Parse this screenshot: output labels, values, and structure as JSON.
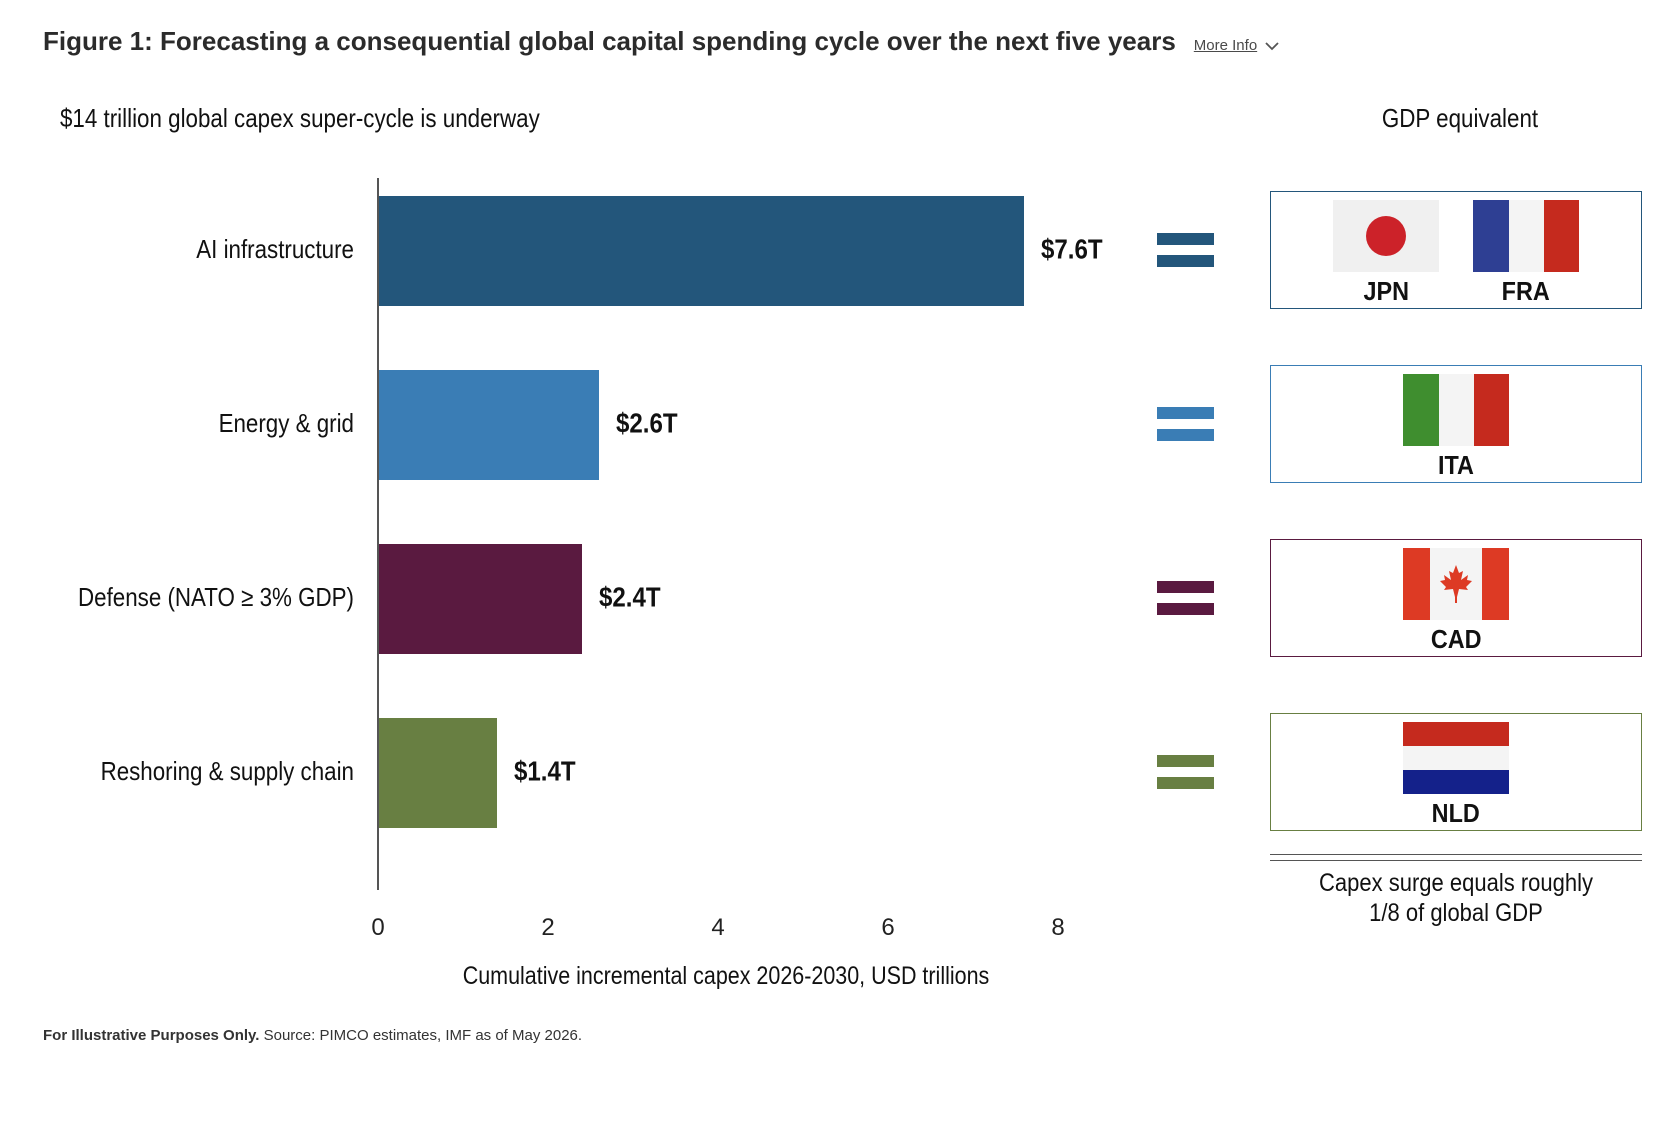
{
  "header": {
    "title": "Figure 1: Forecasting a consequential global capital spending cycle over the next five years",
    "more_info_label": "More Info"
  },
  "chart_data": {
    "type": "bar",
    "orientation": "horizontal",
    "title": "$14 trillion global capex super-cycle is underway",
    "categories": [
      "AI infrastructure",
      "Energy & grid",
      "Defense (NATO ≥ 3% GDP)",
      "Reshoring & supply chain"
    ],
    "values": [
      7.6,
      2.6,
      2.4,
      1.4
    ],
    "value_labels": [
      "$7.6T",
      "$2.6T",
      "$2.4T",
      "$1.4T"
    ],
    "colors": [
      "#23567b",
      "#3a7db5",
      "#5a1a40",
      "#687f42"
    ],
    "xlabel": "Cumulative incremental capex 2026-2030, USD trillions",
    "xlim": [
      0,
      8
    ],
    "xticks": [
      0,
      2,
      4,
      6,
      8
    ],
    "grid": false
  },
  "gdp_panel": {
    "title": "GDP equivalent",
    "rows": [
      {
        "countries": [
          {
            "code": "JPN",
            "flag": "japan"
          },
          {
            "code": "FRA",
            "flag": "france"
          }
        ],
        "border_color": "#23567b"
      },
      {
        "countries": [
          {
            "code": "ITA",
            "flag": "italy"
          }
        ],
        "border_color": "#3a7db5"
      },
      {
        "countries": [
          {
            "code": "CAD",
            "flag": "canada"
          }
        ],
        "border_color": "#5a1a40"
      },
      {
        "countries": [
          {
            "code": "NLD",
            "flag": "netherlands"
          }
        ],
        "border_color": "#687f42"
      }
    ],
    "summary_line1": "Capex surge equals roughly",
    "summary_line2": "1/8 of global GDP"
  },
  "footnote": {
    "bold": "For Illustrative Purposes Only.",
    "text": " Source: PIMCO estimates, IMF as of May 2026."
  }
}
